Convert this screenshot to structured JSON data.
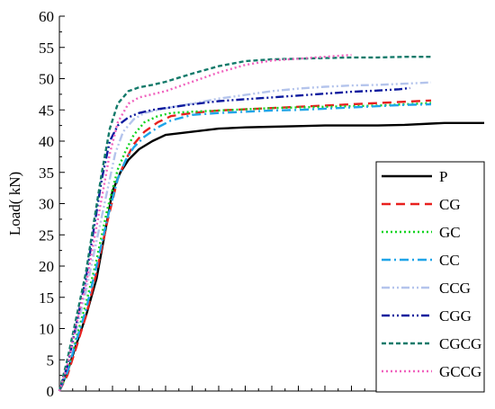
{
  "chart_data": {
    "type": "line",
    "title": "",
    "xlabel": "",
    "ylabel": "Load(  kN)",
    "xlim": [
      0,
      16
    ],
    "ylim": [
      0,
      60
    ],
    "y_ticks": [
      "0",
      "5",
      "10",
      "15",
      "20",
      "25",
      "30",
      "35",
      "40",
      "45",
      "50",
      "55",
      "60"
    ],
    "grid": false,
    "legend_position": "right",
    "series": [
      {
        "name": "P",
        "color": "#000000",
        "dash": "solid",
        "x": [
          0,
          0.3,
          0.6,
          1.0,
          1.4,
          1.7,
          2.0,
          2.3,
          2.6,
          3.0,
          3.5,
          4.0,
          5.0,
          6.0,
          7.0,
          8.0,
          9.0,
          10.0,
          11.0,
          12.0,
          13.0,
          14.0,
          14.5,
          15.0,
          16.0
        ],
        "y": [
          0,
          3,
          7,
          12,
          18,
          25,
          32,
          35,
          37,
          38.7,
          40,
          41,
          41.5,
          42,
          42.2,
          42.3,
          42.4,
          42.5,
          42.5,
          42.5,
          42.6,
          42.8,
          42.9,
          42.9,
          42.9
        ]
      },
      {
        "name": "CG",
        "color": "#e8201e",
        "dash": "long-dash",
        "x": [
          0,
          0.3,
          0.6,
          1.0,
          1.4,
          1.8,
          2.2,
          2.5,
          2.8,
          3.2,
          3.7,
          4.2,
          5.0,
          6.0,
          7.0,
          8.0,
          9.0,
          10.0,
          11.0,
          12.0,
          13.0,
          14.0
        ],
        "y": [
          0,
          2.5,
          6.5,
          12,
          19,
          27,
          34,
          37,
          39.5,
          41.5,
          43,
          44,
          44.5,
          44.9,
          45.1,
          45.3,
          45.5,
          45.7,
          45.9,
          46.1,
          46.3,
          46.5
        ]
      },
      {
        "name": "GC",
        "color": "#10d420",
        "dash": "dot",
        "x": [
          0,
          0.3,
          0.6,
          1.0,
          1.4,
          1.8,
          2.2,
          2.5,
          2.8,
          3.2,
          3.7,
          4.2,
          5.0,
          6.0,
          7.0,
          8.0,
          9.0,
          10.0,
          11.0,
          12.0,
          13.0,
          14.0
        ],
        "y": [
          0,
          3,
          8,
          14,
          21,
          29,
          35.5,
          38.5,
          41,
          43,
          44,
          44.5,
          44.7,
          44.9,
          45.1,
          45.3,
          45.4,
          45.5,
          45.6,
          45.7,
          45.9,
          46.1
        ]
      },
      {
        "name": "CC",
        "color": "#1fa5e8",
        "dash": "dash-dot",
        "x": [
          0,
          0.3,
          0.6,
          1.0,
          1.4,
          1.8,
          2.2,
          2.5,
          2.8,
          3.2,
          3.7,
          4.2,
          5.0,
          6.0,
          7.0,
          8.0,
          9.0,
          10.0,
          11.0,
          12.0,
          13.0,
          14.0
        ],
        "y": [
          0,
          3,
          7.5,
          13,
          20,
          27.5,
          34,
          37,
          39,
          40.7,
          42.2,
          43.3,
          44.2,
          44.5,
          44.7,
          44.9,
          45.0,
          45.2,
          45.4,
          45.6,
          45.8,
          45.9
        ]
      },
      {
        "name": "CCG",
        "color": "#b4c4ec",
        "dash": "dash-dot-dot",
        "x": [
          0,
          0.3,
          0.6,
          1.0,
          1.4,
          1.8,
          2.1,
          2.4,
          2.8,
          3.2,
          3.7,
          4.2,
          5.0,
          6.0,
          7.0,
          8.0,
          9.0,
          10.0,
          11.0,
          12.0,
          13.0,
          14.0
        ],
        "y": [
          0,
          4,
          9,
          16,
          24,
          32,
          38,
          41.5,
          43.5,
          44.5,
          45,
          45.4,
          46,
          46.8,
          47.4,
          48,
          48.4,
          48.7,
          48.9,
          49.0,
          49.2,
          49.4
        ]
      },
      {
        "name": "CGG",
        "color": "#0c1a9e",
        "dash": "dash-dot-dot",
        "x": [
          0,
          0.3,
          0.6,
          1.0,
          1.3,
          1.6,
          1.9,
          2.2,
          2.6,
          3.0,
          3.5,
          4.0,
          5.0,
          6.0,
          7.0,
          8.0,
          9.0,
          10.0,
          11.0,
          12.0,
          12.8,
          13.2
        ],
        "y": [
          0,
          4,
          10,
          18,
          26,
          34,
          40,
          42.5,
          43.8,
          44.5,
          45,
          45.3,
          45.9,
          46.4,
          46.7,
          47.0,
          47.3,
          47.6,
          47.9,
          48.1,
          48.3,
          48.5
        ]
      },
      {
        "name": "CGCG",
        "color": "#137a6a",
        "dash": "short-dash",
        "x": [
          0,
          0.3,
          0.6,
          1.0,
          1.3,
          1.6,
          1.9,
          2.2,
          2.6,
          3.0,
          3.5,
          4.0,
          5.0,
          6.0,
          7.0,
          8.0,
          9.0,
          10.0,
          11.0,
          12.0,
          13.0,
          14.0
        ],
        "y": [
          0,
          5,
          11,
          19,
          27,
          35,
          42,
          46,
          48,
          48.6,
          49,
          49.5,
          50.8,
          52,
          52.8,
          53.1,
          53.2,
          53.3,
          53.4,
          53.4,
          53.5,
          53.5
        ]
      },
      {
        "name": "GCCG",
        "color": "#f062be",
        "dash": "dot",
        "x": [
          0,
          0.3,
          0.6,
          1.0,
          1.3,
          1.6,
          1.9,
          2.2,
          2.6,
          3.0,
          3.5,
          4.0,
          5.0,
          6.0,
          7.0,
          8.0,
          9.0,
          10.0,
          11.0
        ],
        "y": [
          0,
          4,
          10,
          17,
          24,
          31,
          38,
          43,
          46,
          47,
          47.5,
          48,
          49.5,
          51,
          52.2,
          52.9,
          53.2,
          53.5,
          53.8
        ]
      }
    ]
  }
}
